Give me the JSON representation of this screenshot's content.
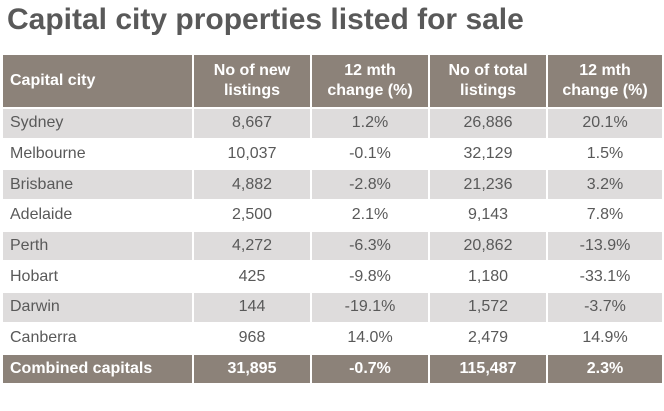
{
  "title": "Capital city properties listed for sale",
  "table": {
    "headers": [
      {
        "line1": "Capital city",
        "line2": ""
      },
      {
        "line1": "No of new",
        "line2": "listings"
      },
      {
        "line1": "12 mth",
        "line2": "change (%)"
      },
      {
        "line1": "No of total",
        "line2": "listings"
      },
      {
        "line1": "12 mth",
        "line2": "change (%)"
      }
    ],
    "rows": [
      {
        "city": "Sydney",
        "new_listings": "8,667",
        "new_change": "1.2%",
        "total_listings": "26,886",
        "total_change": "20.1%"
      },
      {
        "city": "Melbourne",
        "new_listings": "10,037",
        "new_change": "-0.1%",
        "total_listings": "32,129",
        "total_change": "1.5%"
      },
      {
        "city": "Brisbane",
        "new_listings": "4,882",
        "new_change": "-2.8%",
        "total_listings": "21,236",
        "total_change": "3.2%"
      },
      {
        "city": "Adelaide",
        "new_listings": "2,500",
        "new_change": "2.1%",
        "total_listings": "9,143",
        "total_change": "7.8%"
      },
      {
        "city": "Perth",
        "new_listings": "4,272",
        "new_change": "-6.3%",
        "total_listings": "20,862",
        "total_change": "-13.9%"
      },
      {
        "city": "Hobart",
        "new_listings": "425",
        "new_change": "-9.8%",
        "total_listings": "1,180",
        "total_change": "-33.1%"
      },
      {
        "city": "Darwin",
        "new_listings": "144",
        "new_change": "-19.1%",
        "total_listings": "1,572",
        "total_change": "-3.7%"
      },
      {
        "city": "Canberra",
        "new_listings": "968",
        "new_change": "14.0%",
        "total_listings": "2,479",
        "total_change": "14.9%"
      }
    ],
    "total": {
      "city": "Combined capitals",
      "new_listings": "31,895",
      "new_change": "-0.7%",
      "total_listings": "115,487",
      "total_change": "2.3%"
    }
  },
  "colors": {
    "header_bg": "#8c8279",
    "shaded_row": "#dedcdc",
    "text": "#595959"
  }
}
